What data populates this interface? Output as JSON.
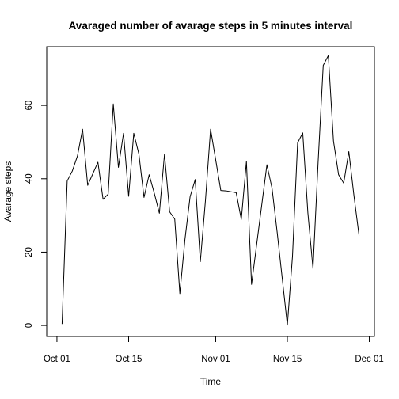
{
  "chart_data": {
    "type": "line",
    "title": "Avaraged number of avarage steps in 5 minutes interval",
    "xlabel": "Time",
    "ylabel": "Avarage steps",
    "x_ticks": [
      "Oct 01",
      "Oct 15",
      "Nov 01",
      "Nov 15",
      "Dec 01"
    ],
    "y_ticks": [
      "0",
      "20",
      "40",
      "60"
    ],
    "xlim": [
      "2012-09-29",
      "2012-12-02"
    ],
    "ylim": [
      -3,
      76
    ],
    "grid": false,
    "series": [
      {
        "name": "",
        "color": "#000000",
        "x": [
          "2012-10-02",
          "2012-10-03",
          "2012-10-04",
          "2012-10-05",
          "2012-10-06",
          "2012-10-07",
          "2012-10-09",
          "2012-10-10",
          "2012-10-11",
          "2012-10-12",
          "2012-10-13",
          "2012-10-14",
          "2012-10-15",
          "2012-10-16",
          "2012-10-17",
          "2012-10-18",
          "2012-10-19",
          "2012-10-20",
          "2012-10-21",
          "2012-10-22",
          "2012-10-23",
          "2012-10-24",
          "2012-10-25",
          "2012-10-26",
          "2012-10-27",
          "2012-10-28",
          "2012-10-29",
          "2012-10-30",
          "2012-10-31",
          "2012-11-02",
          "2012-11-03",
          "2012-11-05",
          "2012-11-06",
          "2012-11-07",
          "2012-11-08",
          "2012-11-11",
          "2012-11-12",
          "2012-11-13",
          "2012-11-15",
          "2012-11-16",
          "2012-11-17",
          "2012-11-18",
          "2012-11-19",
          "2012-11-20",
          "2012-11-21",
          "2012-11-22",
          "2012-11-23",
          "2012-11-24",
          "2012-11-25",
          "2012-11-26",
          "2012-11-27",
          "2012-11-28",
          "2012-11-29"
        ],
        "y": [
          0.4,
          39.4,
          42.1,
          46.2,
          53.5,
          38.2,
          44.5,
          34.4,
          35.8,
          60.4,
          43.1,
          52.4,
          35.2,
          52.4,
          46.7,
          34.9,
          41.1,
          36.1,
          30.6,
          46.7,
          31.0,
          29.0,
          8.7,
          23.5,
          35.1,
          39.8,
          17.4,
          34.1,
          53.5,
          36.8,
          36.7,
          36.2,
          28.9,
          44.7,
          11.2,
          43.8,
          37.4,
          25.5,
          0.1,
          18.9,
          49.8,
          52.5,
          30.7,
          15.5,
          44.4,
          70.9,
          73.6,
          50.3,
          41.1,
          38.8,
          47.4,
          35.4,
          24.5
        ]
      }
    ]
  }
}
